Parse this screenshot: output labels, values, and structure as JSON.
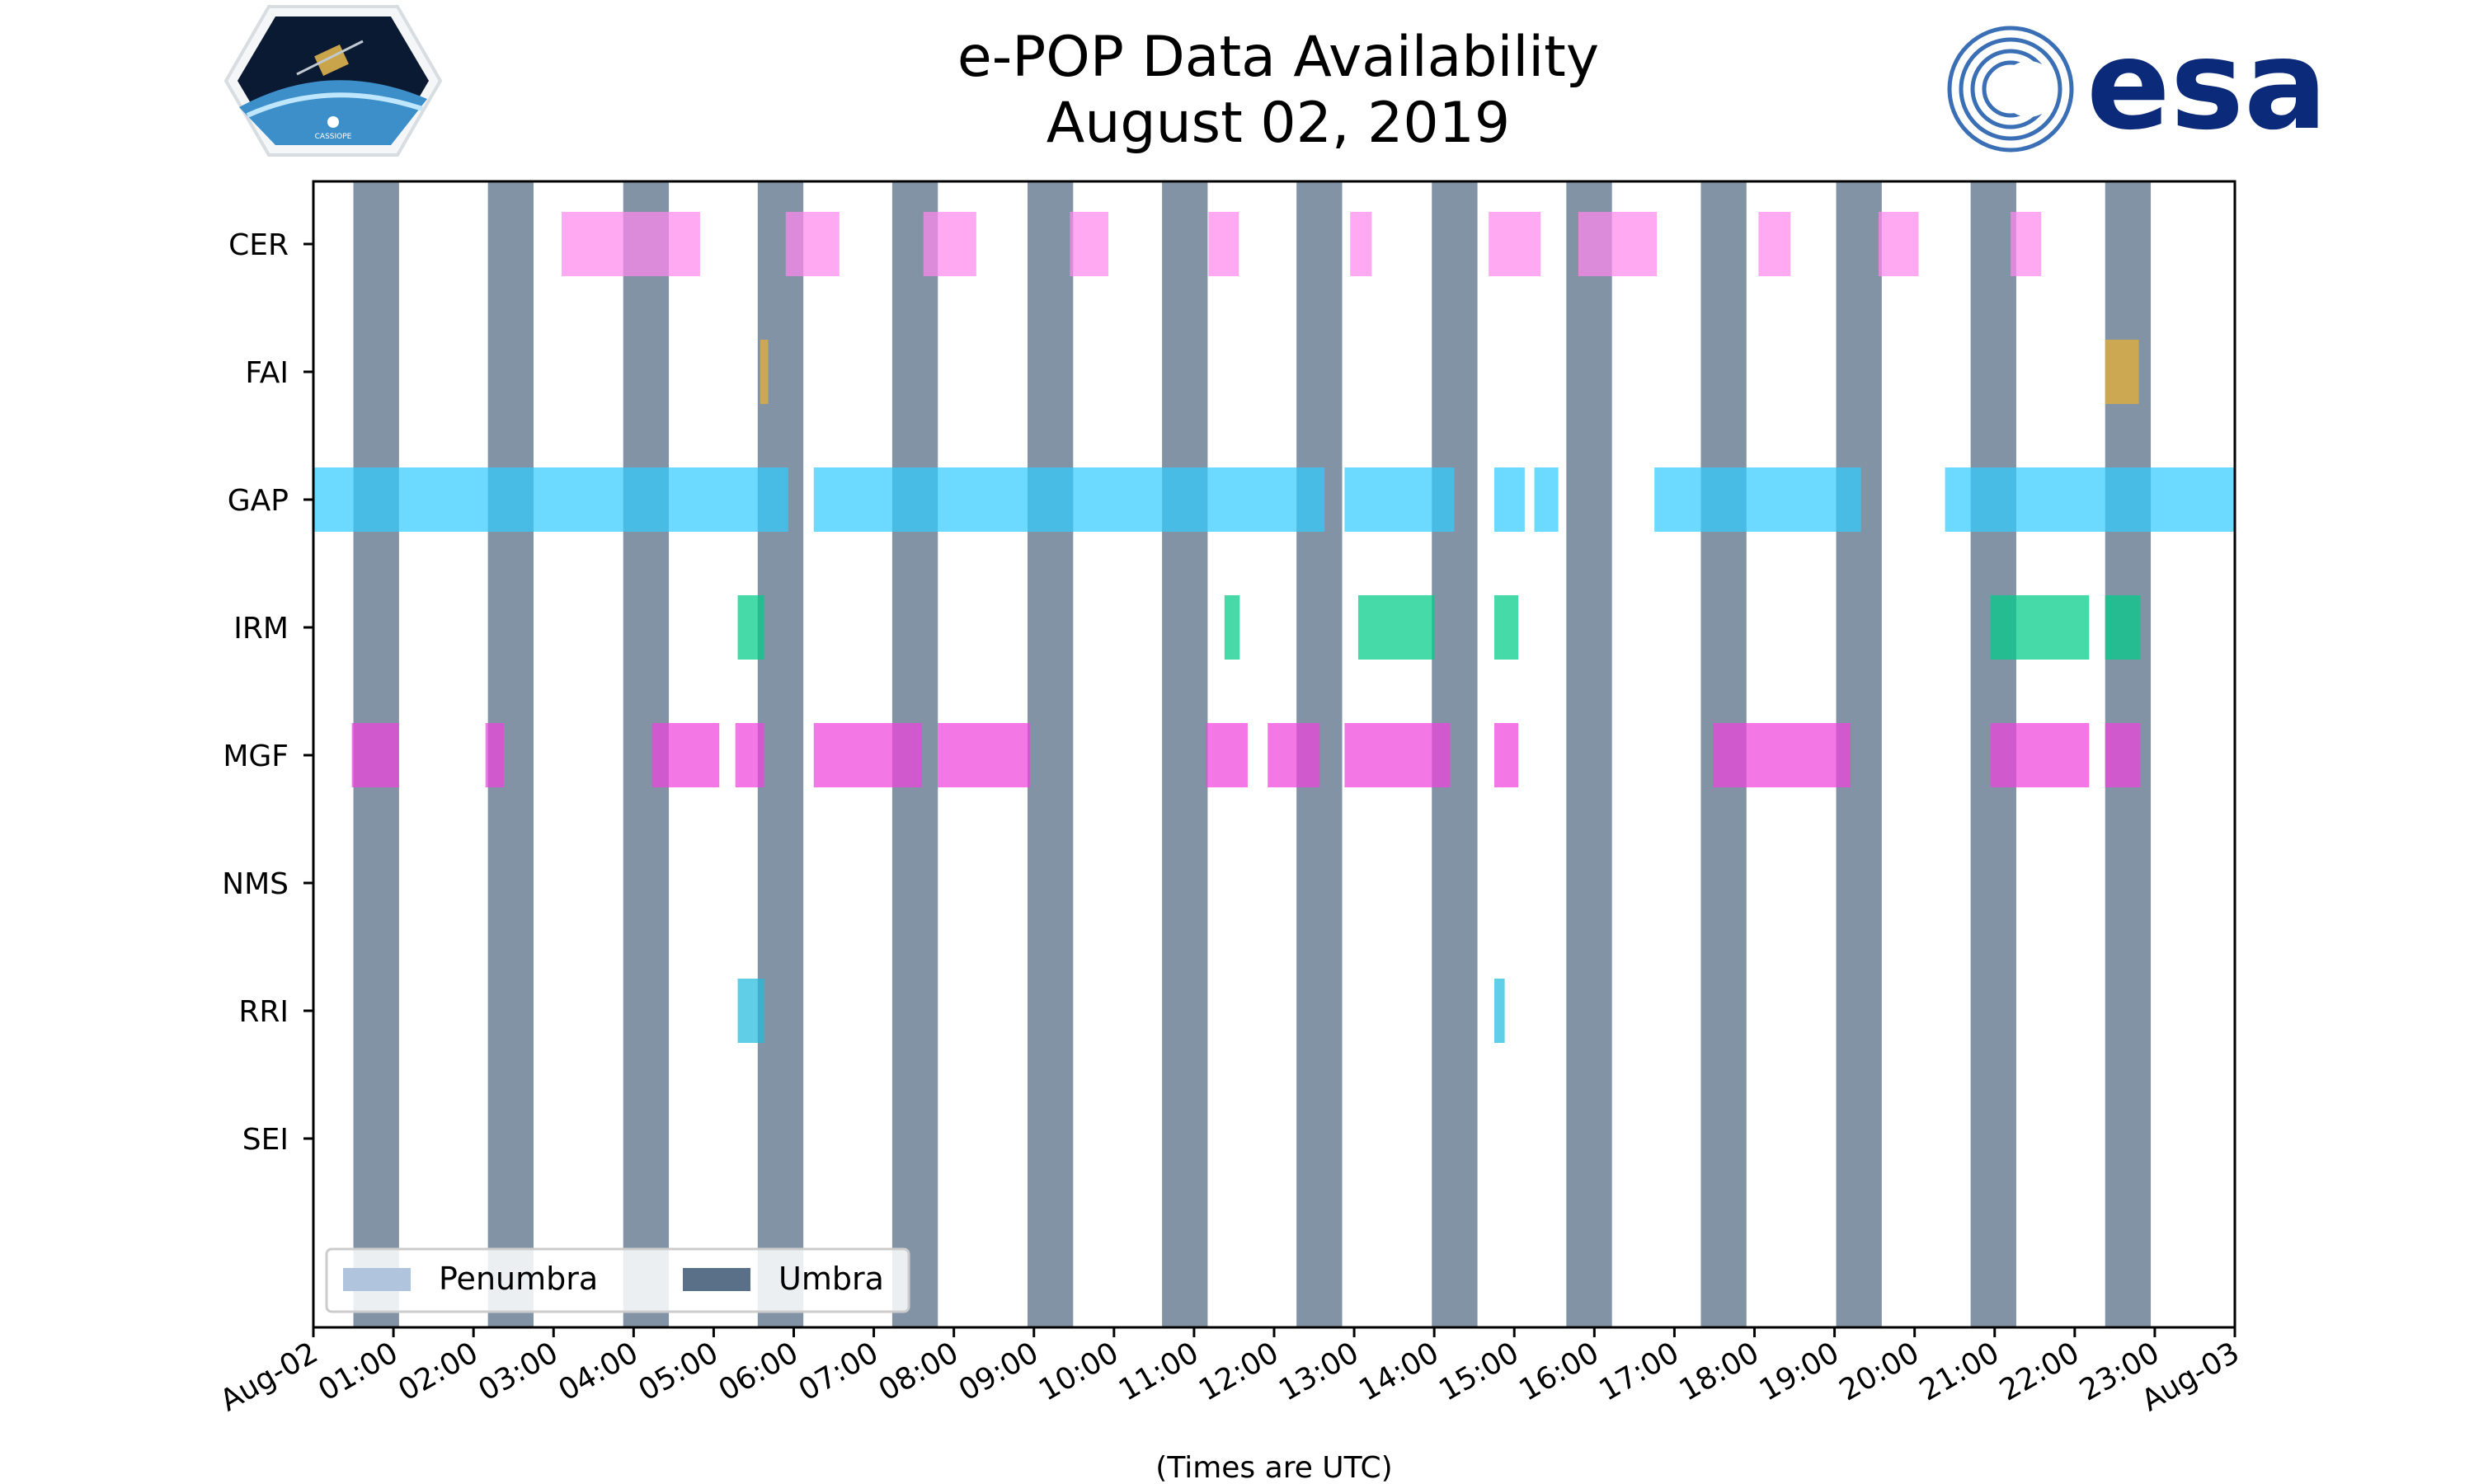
{
  "logos": {
    "left_text": "CASSIOPE",
    "right_text": "esa",
    "right_color": "#0b2b7a",
    "left_accent": "#3a6fb5"
  },
  "chart_data": {
    "type": "timeline",
    "title": [
      "e-POP Data Availability",
      "August 02, 2019"
    ],
    "xlabel": "(Times are UTC)",
    "xlim_hours": [
      0,
      24
    ],
    "x_ticks": [
      {
        "h": 0,
        "label": "Aug-02"
      },
      {
        "h": 1,
        "label": "01:00"
      },
      {
        "h": 2,
        "label": "02:00"
      },
      {
        "h": 3,
        "label": "03:00"
      },
      {
        "h": 4,
        "label": "04:00"
      },
      {
        "h": 5,
        "label": "05:00"
      },
      {
        "h": 6,
        "label": "06:00"
      },
      {
        "h": 7,
        "label": "07:00"
      },
      {
        "h": 8,
        "label": "08:00"
      },
      {
        "h": 9,
        "label": "09:00"
      },
      {
        "h": 10,
        "label": "10:00"
      },
      {
        "h": 11,
        "label": "11:00"
      },
      {
        "h": 12,
        "label": "12:00"
      },
      {
        "h": 13,
        "label": "13:00"
      },
      {
        "h": 14,
        "label": "14:00"
      },
      {
        "h": 15,
        "label": "15:00"
      },
      {
        "h": 16,
        "label": "16:00"
      },
      {
        "h": 17,
        "label": "17:00"
      },
      {
        "h": 18,
        "label": "18:00"
      },
      {
        "h": 19,
        "label": "19:00"
      },
      {
        "h": 20,
        "label": "20:00"
      },
      {
        "h": 21,
        "label": "21:00"
      },
      {
        "h": 22,
        "label": "22:00"
      },
      {
        "h": 23,
        "label": "23:00"
      },
      {
        "h": 24,
        "label": "Aug-03"
      }
    ],
    "instruments": [
      "CER",
      "FAI",
      "GAP",
      "IRM",
      "MGF",
      "NMS",
      "RRI",
      "SEI"
    ],
    "umbra_color": "#5a6f88",
    "penumbra_color": "#b0c4de",
    "umbra_intervals": [
      [
        0.5,
        1.07
      ],
      [
        2.18,
        2.75
      ],
      [
        3.87,
        4.44
      ],
      [
        5.55,
        6.12
      ],
      [
        7.23,
        7.8
      ],
      [
        8.92,
        9.49
      ],
      [
        10.6,
        11.17
      ],
      [
        12.28,
        12.85
      ],
      [
        13.97,
        14.54
      ],
      [
        15.65,
        16.22
      ],
      [
        17.33,
        17.9
      ],
      [
        19.02,
        19.59
      ],
      [
        20.7,
        21.27
      ],
      [
        22.38,
        22.95
      ]
    ],
    "series": [
      {
        "name": "CER",
        "color": "#ff88ee",
        "intervals": [
          [
            3.1,
            4.83
          ],
          [
            5.9,
            6.57
          ],
          [
            7.62,
            8.28
          ],
          [
            9.45,
            9.93
          ],
          [
            11.18,
            11.56
          ],
          [
            12.95,
            13.22
          ],
          [
            14.68,
            15.33
          ],
          [
            15.8,
            16.78
          ],
          [
            18.05,
            18.45
          ],
          [
            19.55,
            20.05
          ],
          [
            21.2,
            21.58
          ]
        ]
      },
      {
        "name": "FAI",
        "color": "#e8b030",
        "intervals": [
          [
            5.58,
            5.68
          ],
          [
            22.38,
            22.8
          ]
        ]
      },
      {
        "name": "GAP",
        "color": "#33ccff",
        "intervals": [
          [
            0.0,
            5.93
          ],
          [
            6.25,
            12.63
          ],
          [
            12.88,
            14.25
          ],
          [
            14.75,
            15.13
          ],
          [
            15.25,
            15.55
          ],
          [
            16.75,
            19.33
          ],
          [
            20.38,
            24.0
          ]
        ]
      },
      {
        "name": "IRM",
        "color": "#00cc88",
        "intervals": [
          [
            5.3,
            5.63
          ],
          [
            11.38,
            11.57
          ],
          [
            13.05,
            14.0
          ],
          [
            14.75,
            15.05
          ],
          [
            20.95,
            22.18
          ],
          [
            22.38,
            22.82
          ]
        ]
      },
      {
        "name": "MGF",
        "color": "#ee44dd",
        "intervals": [
          [
            0.48,
            1.07
          ],
          [
            2.15,
            2.38
          ],
          [
            4.23,
            5.07
          ],
          [
            5.27,
            5.63
          ],
          [
            6.25,
            7.6
          ],
          [
            7.8,
            8.95
          ],
          [
            11.15,
            11.67
          ],
          [
            11.92,
            12.57
          ],
          [
            12.88,
            14.2
          ],
          [
            14.75,
            15.05
          ],
          [
            17.48,
            19.2
          ],
          [
            20.95,
            22.18
          ],
          [
            22.38,
            22.82
          ]
        ]
      },
      {
        "name": "NMS",
        "color": "#888888",
        "intervals": []
      },
      {
        "name": "RRI",
        "color": "#22bbdd",
        "intervals": [
          [
            5.3,
            5.63
          ],
          [
            14.75,
            14.88
          ]
        ]
      },
      {
        "name": "SEI",
        "color": "#888888",
        "intervals": []
      }
    ],
    "legend": {
      "position": "lower-left",
      "entries": [
        "Penumbra",
        "Umbra"
      ]
    }
  }
}
